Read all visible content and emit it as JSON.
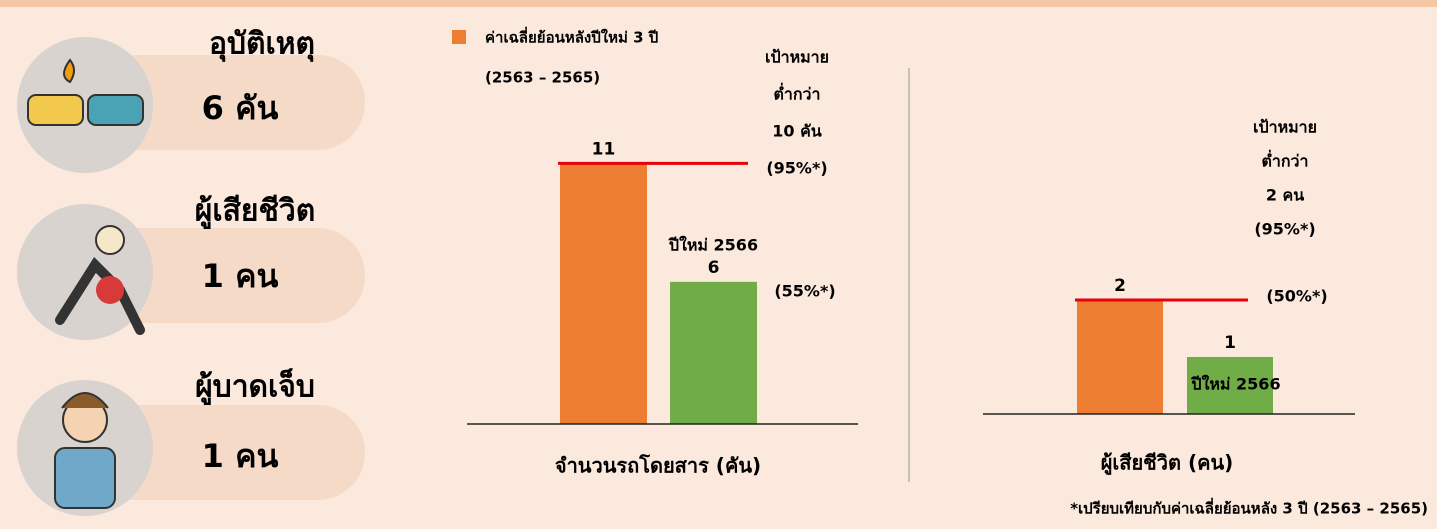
{
  "stats": [
    {
      "label": "อุบัติเหตุ",
      "value": "6 คัน"
    },
    {
      "label": "ผู้เสียชีวิต",
      "value": "1 คน"
    },
    {
      "label": "ผู้บาดเจ็บ",
      "value": "1 คน"
    }
  ],
  "chart_data": [
    {
      "type": "bar",
      "legend": [
        "ค่าเฉลี่ยย้อนหลังปีใหม่ 3 ปี",
        "(2563 – 2565)"
      ],
      "x_label": "จำนวนรถโดยสาร (คัน)",
      "categories": [
        null,
        "ปีใหม่ 2566"
      ],
      "values": [
        11,
        6
      ],
      "colors": [
        "#ed7d31",
        "#70ad47"
      ],
      "ylim": [
        0,
        13
      ],
      "reference_line": {
        "value": 11,
        "color": "#e8000b"
      },
      "target": [
        "เป้าหมาย",
        "ต่ำกว่า",
        "10 คัน",
        "(95%*)"
      ],
      "percent": "(55%*)"
    },
    {
      "type": "bar",
      "x_label": "ผู้เสียชีวิต (คน)",
      "categories": [
        null,
        "ปีใหม่ 2566"
      ],
      "values": [
        2,
        1
      ],
      "colors": [
        "#ed7d31",
        "#70ad47"
      ],
      "ylim": [
        0,
        4
      ],
      "reference_line": {
        "value": 2,
        "color": "#e8000b"
      },
      "target": [
        "เป้าหมาย",
        "ต่ำกว่า",
        "2 คน",
        "(95%*)"
      ],
      "percent": "(50%*)"
    }
  ],
  "footnote": "*เปรียบเทียบกับค่าเฉลี่ยย้อนหลัง 3 ปี (2563 – 2565)"
}
